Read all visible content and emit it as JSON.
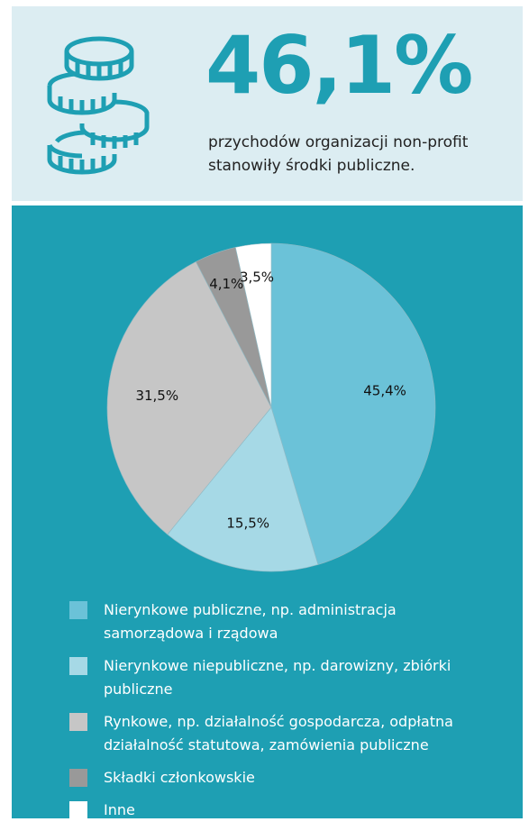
{
  "header": {
    "headline": "46,1%",
    "subtitle": "przychodów organizacji non-profit stanowiły środki publiczne."
  },
  "icon": "coins-stack-icon",
  "colors": {
    "top_bg": "#dcedf2",
    "accent": "#1e9fb3"
  },
  "chart_data": {
    "type": "pie",
    "slices": [
      {
        "label": "Nierynkowe publiczne, np. administracja samorządowa i rządowa",
        "value": 45.4,
        "display": "45,4%",
        "color": "#6bc2d8"
      },
      {
        "label": "Nierynkowe niepubliczne, np. darowizny, zbiórki publiczne",
        "value": 15.5,
        "display": "15,5%",
        "color": "#a6d9e6"
      },
      {
        "label": "Rynkowe, np. działalność gospodarcza, odpłatna działalność statutowa, zamówienia publiczne",
        "value": 31.5,
        "display": "31,5%",
        "color": "#c6c6c6"
      },
      {
        "label": "Składki członkowskie",
        "value": 4.1,
        "display": "4,1%",
        "color": "#999999"
      },
      {
        "label": "Inne",
        "value": 3.5,
        "display": "3,5%",
        "color": "#ffffff"
      }
    ],
    "legend_position": "bottom"
  }
}
